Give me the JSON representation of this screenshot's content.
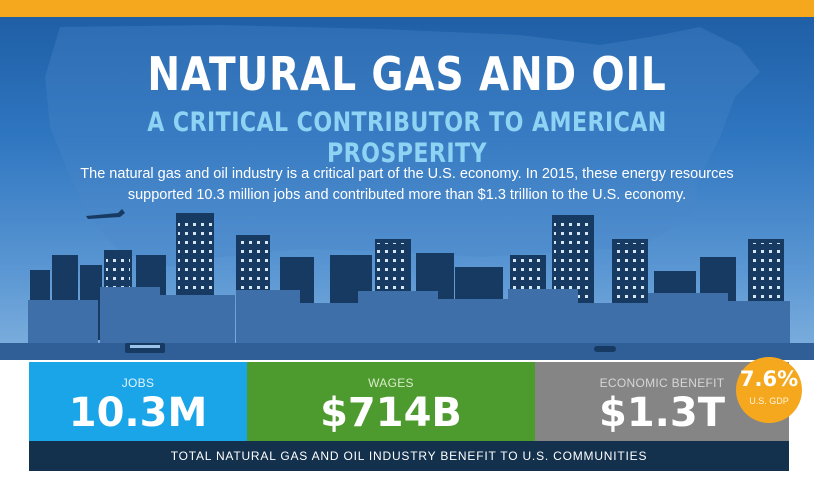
{
  "header": {
    "title": "NATURAL GAS AND OIL",
    "subtitle": "A CRITICAL CONTRIBUTOR TO AMERICAN PROSPERITY",
    "description": "The natural gas and oil industry is a critical part of the U.S. economy.  In 2015, these energy resources supported 10.3 million jobs and contributed more than $1.3 trillion to the U.S. economy."
  },
  "stats": {
    "jobs": {
      "label": "JOBS",
      "value": "10.3M"
    },
    "wages": {
      "label": "WAGES",
      "value": "$714B"
    },
    "economic_benefit": {
      "label": "ECONOMIC BENEFIT",
      "value": "$1.3T"
    }
  },
  "gdp_badge": {
    "value": "7.6%",
    "label": "U.S. GDP"
  },
  "footer": {
    "text": "TOTAL NATURAL GAS AND OIL INDUSTRY BENEFIT TO U.S. COMMUNITIES"
  },
  "colors": {
    "top_bar": "#f5a81d",
    "jobs": "#19a5e8",
    "wages": "#4d9a2e",
    "economic_benefit": "#858585",
    "footer": "#13304c",
    "badge": "#f5a81d"
  }
}
